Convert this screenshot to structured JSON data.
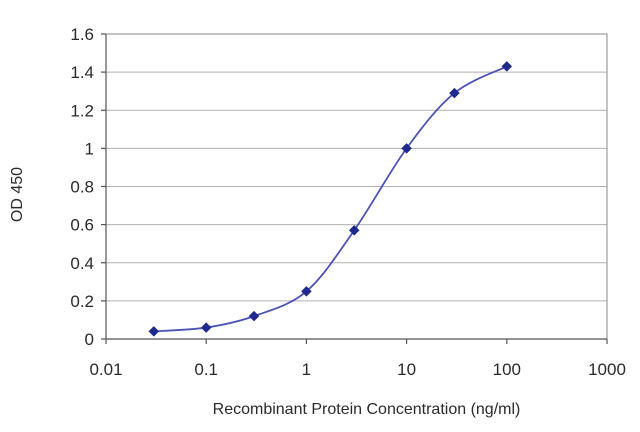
{
  "chart_data": {
    "type": "line",
    "title": "",
    "xlabel": "Recombinant Protein Concentration (ng/ml)",
    "ylabel": "OD 450",
    "x_scale": "log",
    "xlim": [
      0.01,
      1000
    ],
    "ylim": [
      0,
      1.6
    ],
    "x_ticks": [
      0.01,
      0.1,
      1,
      10,
      100,
      1000
    ],
    "x_tick_labels": [
      "0.01",
      "0.1",
      "1",
      "10",
      "100",
      "1000"
    ],
    "y_ticks": [
      0,
      0.2,
      0.4,
      0.6,
      0.8,
      1,
      1.2,
      1.4,
      1.6
    ],
    "y_tick_labels": [
      "0",
      "0.2",
      "0.4",
      "0.6",
      "0.8",
      "1",
      "1.2",
      "1.4",
      "1.6"
    ],
    "grid": "horizontal",
    "series": [
      {
        "x": [
          0.03,
          0.1,
          0.3,
          1,
          3,
          10,
          30,
          100
        ],
        "y": [
          0.04,
          0.06,
          0.12,
          0.25,
          0.57,
          1.0,
          1.29,
          1.43
        ],
        "color": "#1f2a8c"
      }
    ]
  }
}
